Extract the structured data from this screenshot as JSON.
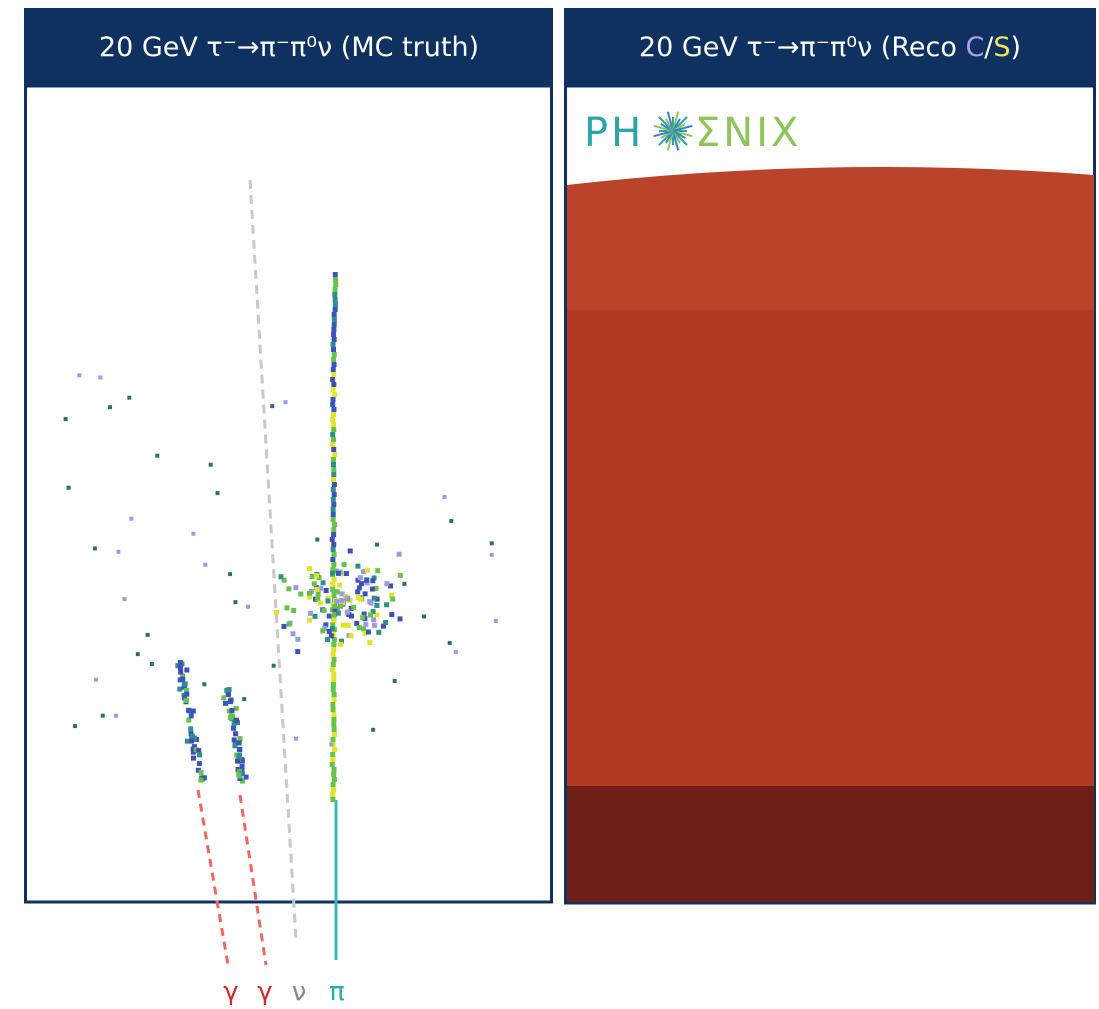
{
  "left_panel": {
    "title": "20 GeV τ⁻→π⁻π⁰ν (MC truth)"
  },
  "right_panel": {
    "title_parts": [
      "20 GeV τ⁻→π⁻π⁰ν (Reco ",
      "C",
      "/",
      "S",
      ")"
    ],
    "logo_left": "PH",
    "logo_right": "ΣNIX"
  },
  "particle_labels": [
    "γ",
    "γ",
    "ν",
    "π"
  ]
}
